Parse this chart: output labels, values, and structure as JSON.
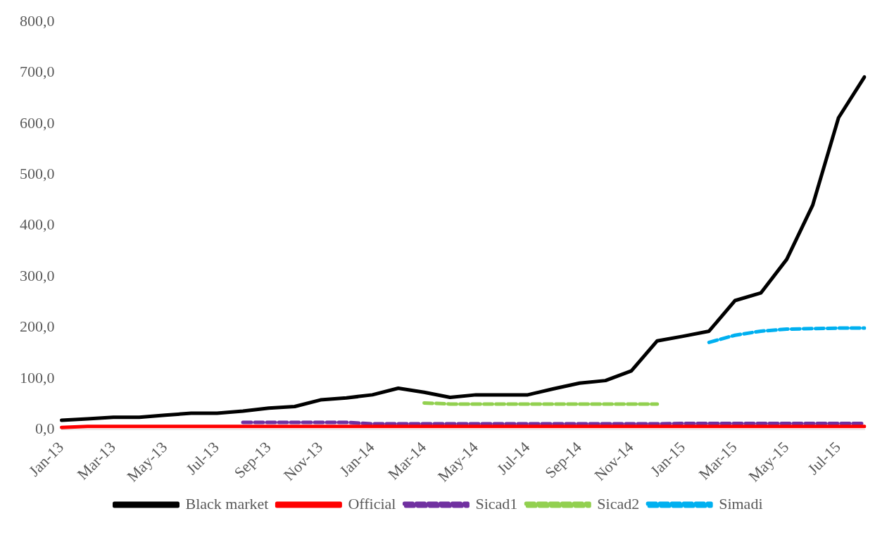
{
  "chart_data": {
    "type": "line",
    "categories": [
      "Jan-13",
      null,
      "Mar-13",
      null,
      "May-13",
      null,
      "Jul-13",
      null,
      "Sep-13",
      null,
      "Nov-13",
      null,
      "Jan-14",
      null,
      "Mar-14",
      null,
      "May-14",
      null,
      "Jul-14",
      null,
      "Sep-14",
      null,
      "Nov-14",
      null,
      "Jan-15",
      null,
      "Mar-15",
      null,
      "May-15",
      null,
      "Jul-15",
      null
    ],
    "series": [
      {
        "name": "Black market",
        "color": "#000000",
        "line_style": "solid",
        "values": [
          18,
          21,
          24,
          24,
          28,
          32,
          32,
          36,
          42,
          45,
          58,
          62,
          68,
          81,
          73,
          63,
          68,
          68,
          68,
          80,
          91,
          96,
          115,
          174,
          183,
          193,
          253,
          268,
          334,
          440,
          612,
          692
        ]
      },
      {
        "name": "Official",
        "color": "#ff0000",
        "line_style": "solid",
        "values": [
          4,
          6,
          6,
          6,
          6,
          6,
          6,
          6,
          6,
          6,
          6,
          6,
          6,
          6,
          6,
          6,
          6,
          6,
          6,
          6,
          6,
          6,
          6,
          6,
          6,
          6,
          6,
          6,
          6,
          6,
          6,
          6
        ]
      },
      {
        "name": "Sicad1",
        "color": "#7030a0",
        "line_style": "dashed",
        "values": [
          null,
          null,
          null,
          null,
          null,
          null,
          null,
          14,
          14,
          14,
          14,
          14,
          11,
          11,
          11,
          11,
          11,
          11,
          11,
          11,
          11,
          11,
          11,
          11,
          12,
          12,
          12,
          12,
          12,
          12,
          12,
          12
        ]
      },
      {
        "name": "Sicad2",
        "color": "#92d050",
        "line_style": "dashed",
        "values": [
          null,
          null,
          null,
          null,
          null,
          null,
          null,
          null,
          null,
          null,
          null,
          null,
          null,
          null,
          52,
          50,
          50,
          50,
          50,
          50,
          50,
          50,
          50,
          50,
          null,
          null,
          null,
          null,
          null,
          null,
          null,
          null
        ]
      },
      {
        "name": "Simadi",
        "color": "#00b0f0",
        "line_style": "dashed",
        "values": [
          null,
          null,
          null,
          null,
          null,
          null,
          null,
          null,
          null,
          null,
          null,
          null,
          null,
          null,
          null,
          null,
          null,
          null,
          null,
          null,
          null,
          null,
          null,
          null,
          null,
          171,
          185,
          193,
          197,
          198,
          199,
          199
        ]
      }
    ],
    "ylim": [
      0,
      800
    ],
    "yticks": [
      {
        "value": 0,
        "label": "0,0"
      },
      {
        "value": 100,
        "label": "100,0"
      },
      {
        "value": 200,
        "label": "200,0"
      },
      {
        "value": 300,
        "label": "300,0"
      },
      {
        "value": 400,
        "label": "400,0"
      },
      {
        "value": 500,
        "label": "500,0"
      },
      {
        "value": 600,
        "label": "600,0"
      },
      {
        "value": 700,
        "label": "700,0"
      },
      {
        "value": 800,
        "label": "800,0"
      }
    ],
    "legend": "bottom",
    "marker": "none"
  }
}
